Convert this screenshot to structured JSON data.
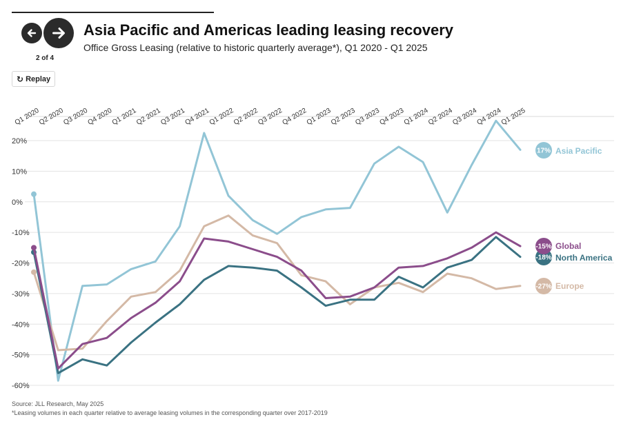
{
  "header": {
    "title": "Asia Pacific and Americas leading leasing recovery",
    "subtitle": "Office Gross Leasing (relative to historic quarterly average*), Q1 2020 - Q1 2025",
    "page_count": "2 of 4",
    "replay_label": "Replay",
    "prev_icon": "arrow-left-icon",
    "next_icon": "arrow-right-icon",
    "replay_icon": "replay-icon"
  },
  "footer": {
    "source": "Source: JLL Research, May 2025",
    "footnote": "*Leasing volumes in each quarter relative to average leasing volumes in the corresponding quarter over 2017-2019"
  },
  "chart_data": {
    "type": "line",
    "title": "Asia Pacific and Americas leading leasing recovery",
    "subtitle": "Office Gross Leasing (relative to historic quarterly average*), Q1 2020 - Q1 2025",
    "xlabel": "",
    "ylabel": "",
    "ylim": [
      -60,
      25
    ],
    "yticks": [
      20,
      10,
      0,
      -10,
      -20,
      -30,
      -40,
      -50,
      -60
    ],
    "ytick_labels": [
      "20%",
      "10%",
      "0%",
      "-10%",
      "-20%",
      "-30%",
      "-40%",
      "-50%",
      "-60%"
    ],
    "grid": "horizontal",
    "legend": "end-labels",
    "categories": [
      "Q1 2020",
      "Q2 2020",
      "Q3 2020",
      "Q4 2020",
      "Q1 2021",
      "Q2 2021",
      "Q3 2021",
      "Q4 2021",
      "Q1 2022",
      "Q2 2022",
      "Q3 2022",
      "Q4 2022",
      "Q1 2023",
      "Q2 2023",
      "Q3 2023",
      "Q4 2023",
      "Q1 2024",
      "Q2 2024",
      "Q3 2024",
      "Q4 2024",
      "Q1 2025"
    ],
    "series": [
      {
        "name": "Asia Pacific",
        "color": "#92c5d6",
        "end_label": "17%",
        "values": [
          2.5,
          -58.5,
          -27.5,
          -27,
          -22,
          -19.5,
          -8,
          22.5,
          2,
          -6,
          -10.5,
          -5,
          -2.5,
          -2,
          12.5,
          18,
          13,
          -3.5,
          12,
          26.5,
          17
        ]
      },
      {
        "name": "Global",
        "color": "#8b4d8b",
        "end_label": "-15%",
        "values": [
          -15,
          -54.5,
          -46.5,
          -44.5,
          -38,
          -33,
          -26,
          -12,
          -13,
          -15.5,
          -18,
          -22.5,
          -31.5,
          -31,
          -28,
          -21.5,
          -21,
          -18.5,
          -15,
          -10,
          -14.5
        ]
      },
      {
        "name": "North America",
        "color": "#3a7282",
        "end_label": "-18%",
        "values": [
          -16.5,
          -56,
          -51.5,
          -53.5,
          -46,
          -39.5,
          -33.5,
          -25.5,
          -21,
          -21.5,
          -22.5,
          -28,
          -34,
          -32,
          -32,
          -24.5,
          -28,
          -21.5,
          -19,
          -11.5,
          -18
        ]
      },
      {
        "name": "Europe",
        "color": "#d4b9a6",
        "end_label": "-27%",
        "values": [
          -23,
          -48.5,
          -48,
          -39,
          -31,
          -29.5,
          -22.5,
          -8,
          -4.5,
          -11,
          -13.5,
          -24,
          -26,
          -33.5,
          -28,
          -26.5,
          -29.5,
          -23.5,
          -25,
          -28.5,
          -27.5
        ]
      }
    ]
  }
}
